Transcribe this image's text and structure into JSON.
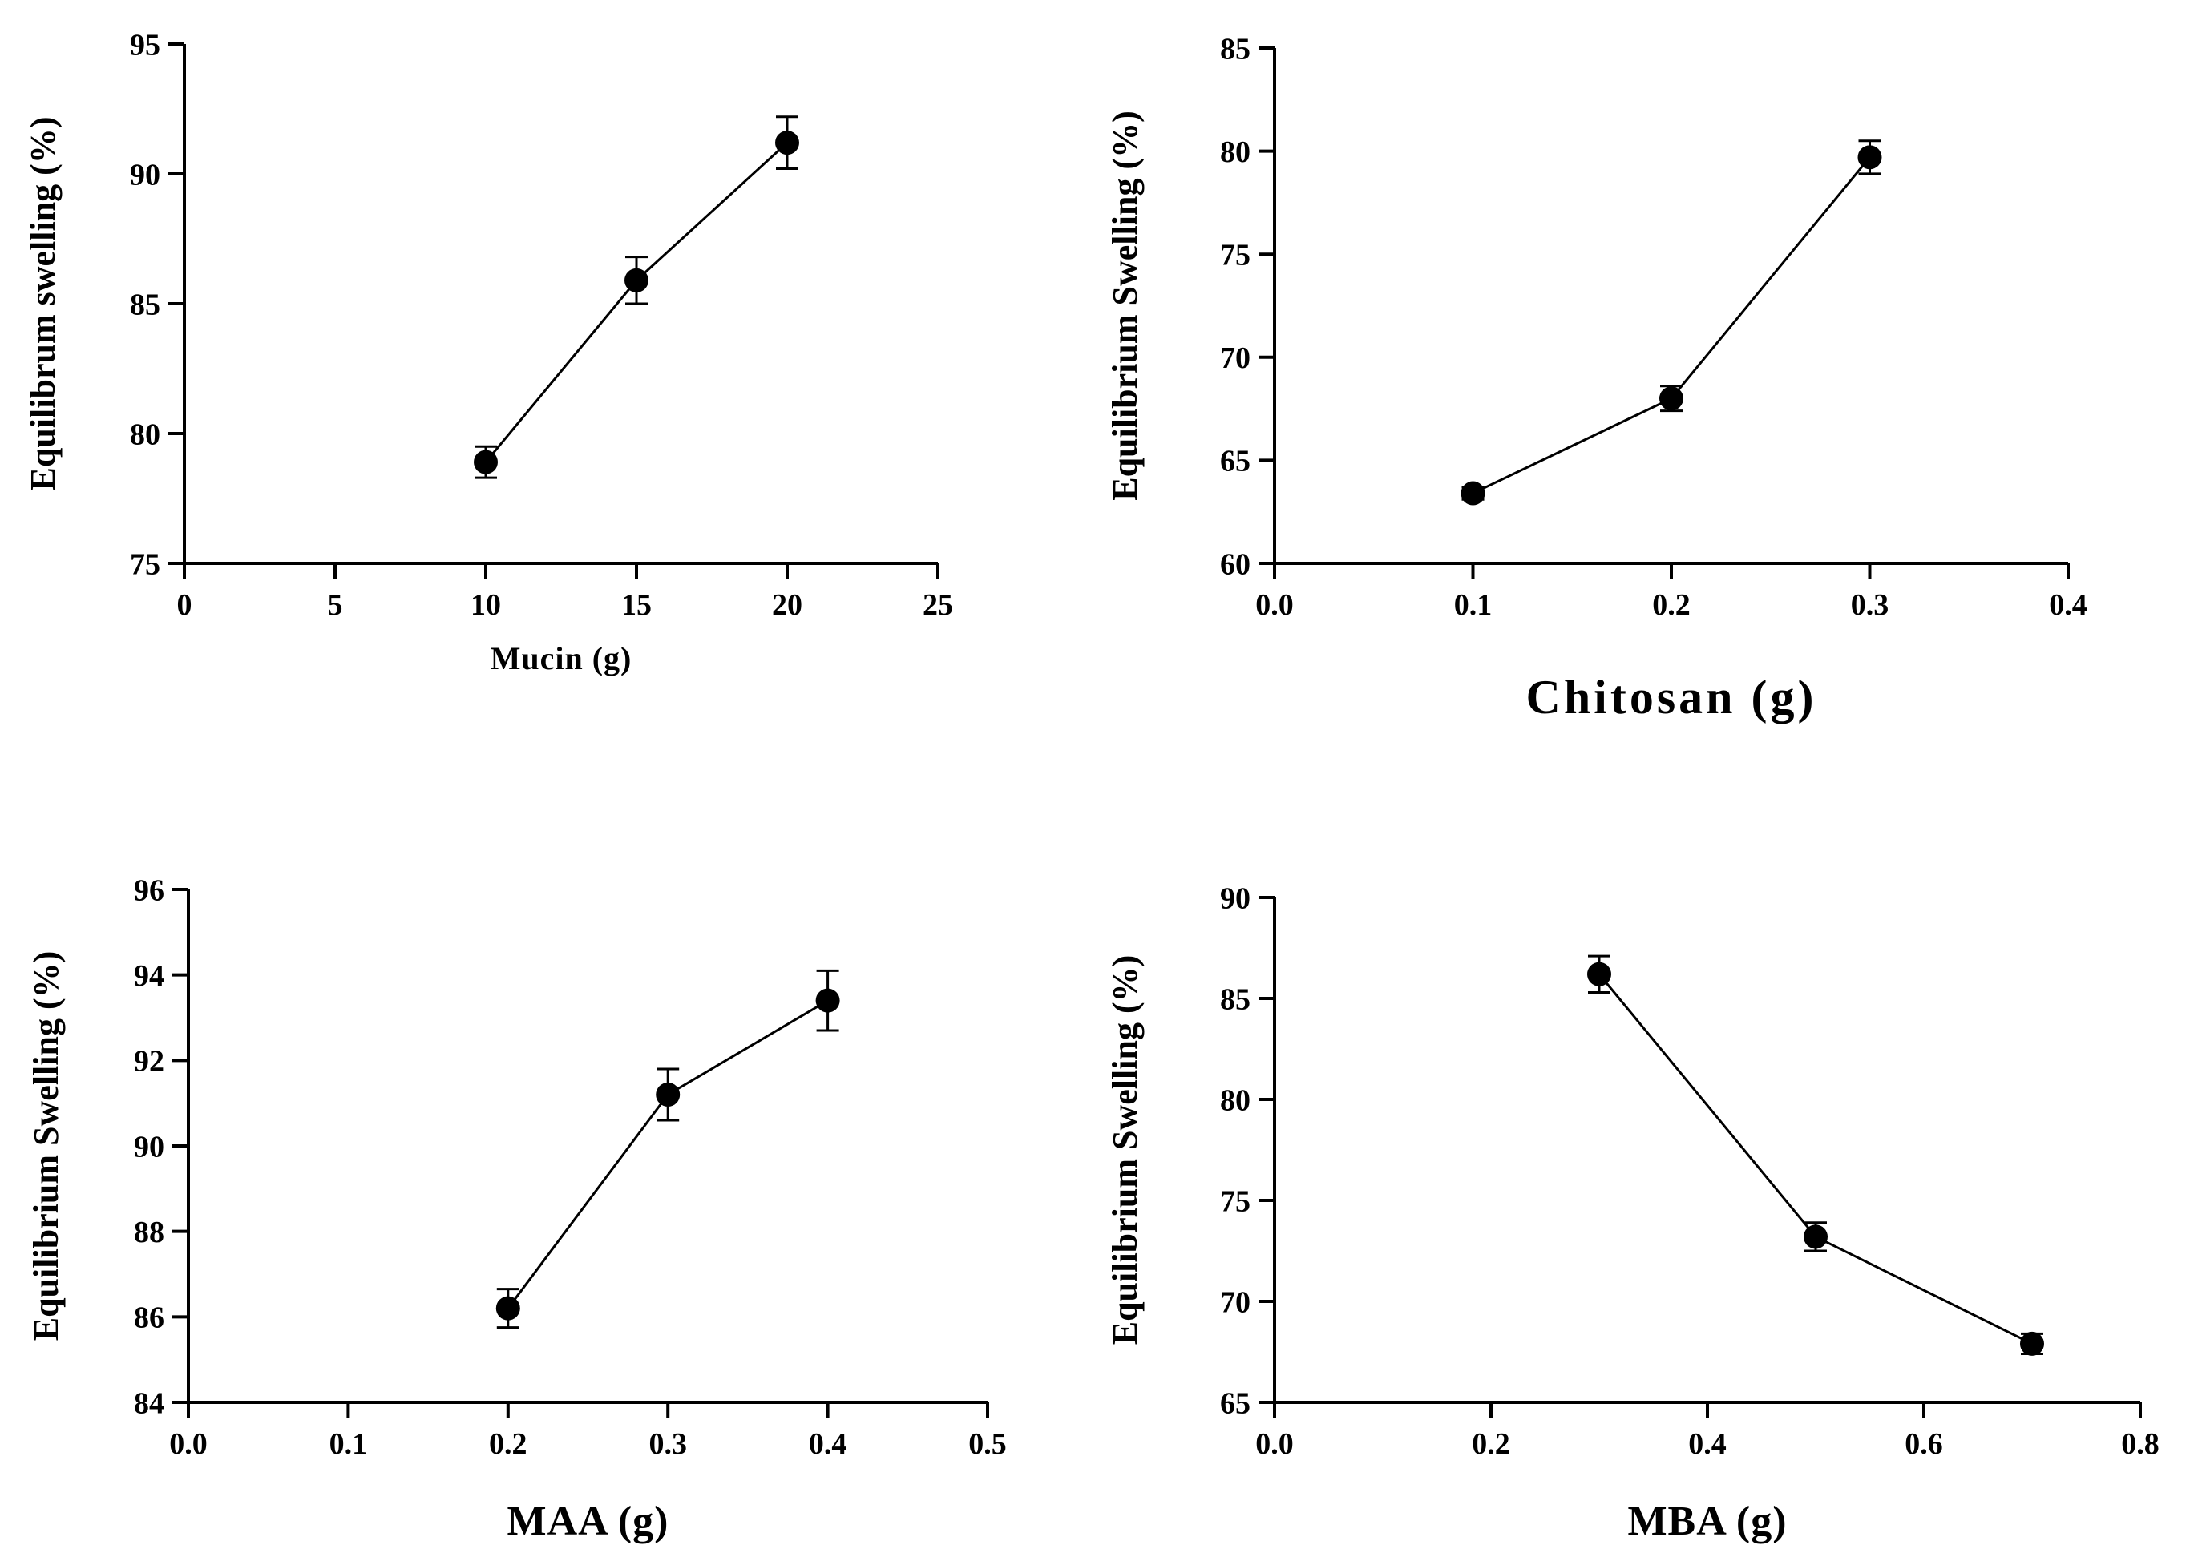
{
  "chart_data": [
    {
      "type": "line",
      "title": "",
      "xlabel": "Mucin (g)",
      "ylabel": "Equilibrum swelling (%)",
      "xlim": [
        0,
        25
      ],
      "ylim": [
        75,
        95
      ],
      "xticks": [
        0,
        5,
        10,
        15,
        20,
        25
      ],
      "yticks": [
        75,
        80,
        85,
        90,
        95
      ],
      "xtick_labels": [
        "0",
        "5",
        "10",
        "15",
        "20",
        "25"
      ],
      "ytick_labels": [
        "75",
        "80",
        "85",
        "90",
        "95"
      ],
      "grid": false,
      "series": [
        {
          "name": "",
          "x": [
            10,
            15,
            20
          ],
          "y": [
            78.9,
            85.9,
            91.2
          ],
          "error": [
            0.6,
            0.9,
            1.0
          ]
        }
      ]
    },
    {
      "type": "line",
      "title": "",
      "xlabel": "Chitosan (g)",
      "ylabel": "Equilibrium Swelling (%)",
      "xlim": [
        0.0,
        0.4
      ],
      "ylim": [
        60,
        85
      ],
      "xticks": [
        0.0,
        0.1,
        0.2,
        0.3,
        0.4
      ],
      "yticks": [
        60,
        65,
        70,
        75,
        80,
        85
      ],
      "xtick_labels": [
        "0.0",
        "0.1",
        "0.2",
        "0.3",
        "0.4"
      ],
      "ytick_labels": [
        "60",
        "65",
        "70",
        "75",
        "80",
        "85"
      ],
      "grid": false,
      "series": [
        {
          "name": "",
          "x": [
            0.1,
            0.2,
            0.3
          ],
          "y": [
            63.4,
            68.0,
            79.7
          ],
          "error": [
            0.3,
            0.6,
            0.8
          ]
        }
      ]
    },
    {
      "type": "line",
      "title": "",
      "xlabel": "MAA (g)",
      "ylabel": "Equilibrium Swelling (%)",
      "xlim": [
        0.0,
        0.5
      ],
      "ylim": [
        84,
        96
      ],
      "xticks": [
        0.0,
        0.1,
        0.2,
        0.3,
        0.4,
        0.5
      ],
      "yticks": [
        84,
        86,
        88,
        90,
        92,
        94,
        96
      ],
      "xtick_labels": [
        "0.0",
        "0.1",
        "0.2",
        "0.3",
        "0.4",
        "0.5"
      ],
      "ytick_labels": [
        "84",
        "86",
        "88",
        "90",
        "92",
        "94",
        "96"
      ],
      "grid": false,
      "series": [
        {
          "name": "",
          "x": [
            0.2,
            0.3,
            0.4
          ],
          "y": [
            86.2,
            91.2,
            93.4
          ],
          "error": [
            0.45,
            0.6,
            0.7
          ]
        }
      ]
    },
    {
      "type": "line",
      "title": "",
      "xlabel": "MBA (g)",
      "ylabel": "Equilibrium Swelling (%)",
      "xlim": [
        0.0,
        0.8
      ],
      "ylim": [
        65,
        90
      ],
      "xticks": [
        0.0,
        0.2,
        0.4,
        0.6,
        0.8
      ],
      "yticks": [
        65,
        70,
        75,
        80,
        85,
        90
      ],
      "xtick_labels": [
        "0.0",
        "0.2",
        "0.4",
        "0.6",
        "0.8"
      ],
      "ytick_labels": [
        "65",
        "70",
        "75",
        "80",
        "85",
        "90"
      ],
      "grid": false,
      "series": [
        {
          "name": "",
          "x": [
            0.3,
            0.5,
            0.7
          ],
          "y": [
            86.2,
            73.2,
            67.9
          ],
          "error": [
            0.9,
            0.7,
            0.5
          ]
        }
      ]
    }
  ]
}
